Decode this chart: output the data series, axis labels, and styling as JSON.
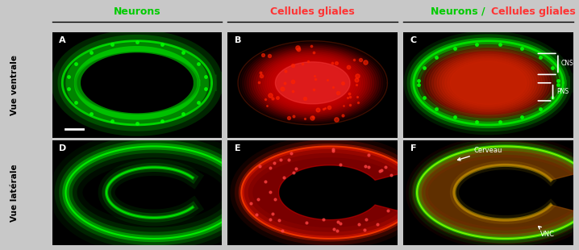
{
  "title_neurons": "Neurons",
  "title_cellules": "Cellules gliales",
  "title_combo": "Neurons / Cellules gliales",
  "title_neurons_color": "#00cc00",
  "title_cellules_color": "#ff3333",
  "title_combo_color_neurons": "#00cc00",
  "title_combo_color_cellules": "#ff3333",
  "row_labels": [
    "Vue ventrale",
    "Vue latérale"
  ],
  "panel_labels": [
    "A",
    "B",
    "C",
    "D",
    "E",
    "F"
  ],
  "annotations_C": [
    "CNS",
    "PNS"
  ],
  "annotations_F": [
    "Cerveau",
    "VNC"
  ],
  "background_color": "#c8c8c8",
  "panel_bg": "#000000",
  "fig_width": 7.18,
  "fig_height": 3.1
}
